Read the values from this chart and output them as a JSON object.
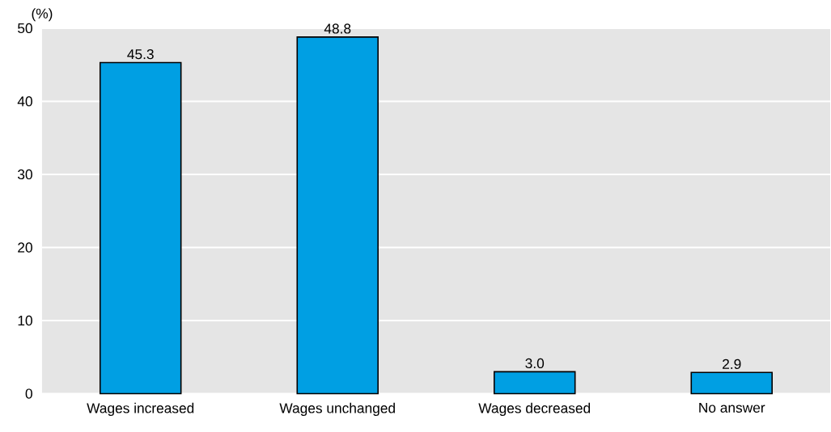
{
  "chart_data": {
    "type": "bar",
    "ylabel": "(%)",
    "categories": [
      "Wages increased",
      "Wages unchanged",
      "Wages decreased",
      "No answer"
    ],
    "values": [
      45.3,
      48.8,
      3.0,
      2.9
    ],
    "value_labels": [
      "45.3",
      "48.8",
      "3.0",
      "2.9"
    ],
    "color": "#009fe3",
    "ylim": [
      0,
      50
    ],
    "yticks": [
      0,
      10,
      20,
      30,
      40,
      50
    ],
    "grid": "y"
  }
}
